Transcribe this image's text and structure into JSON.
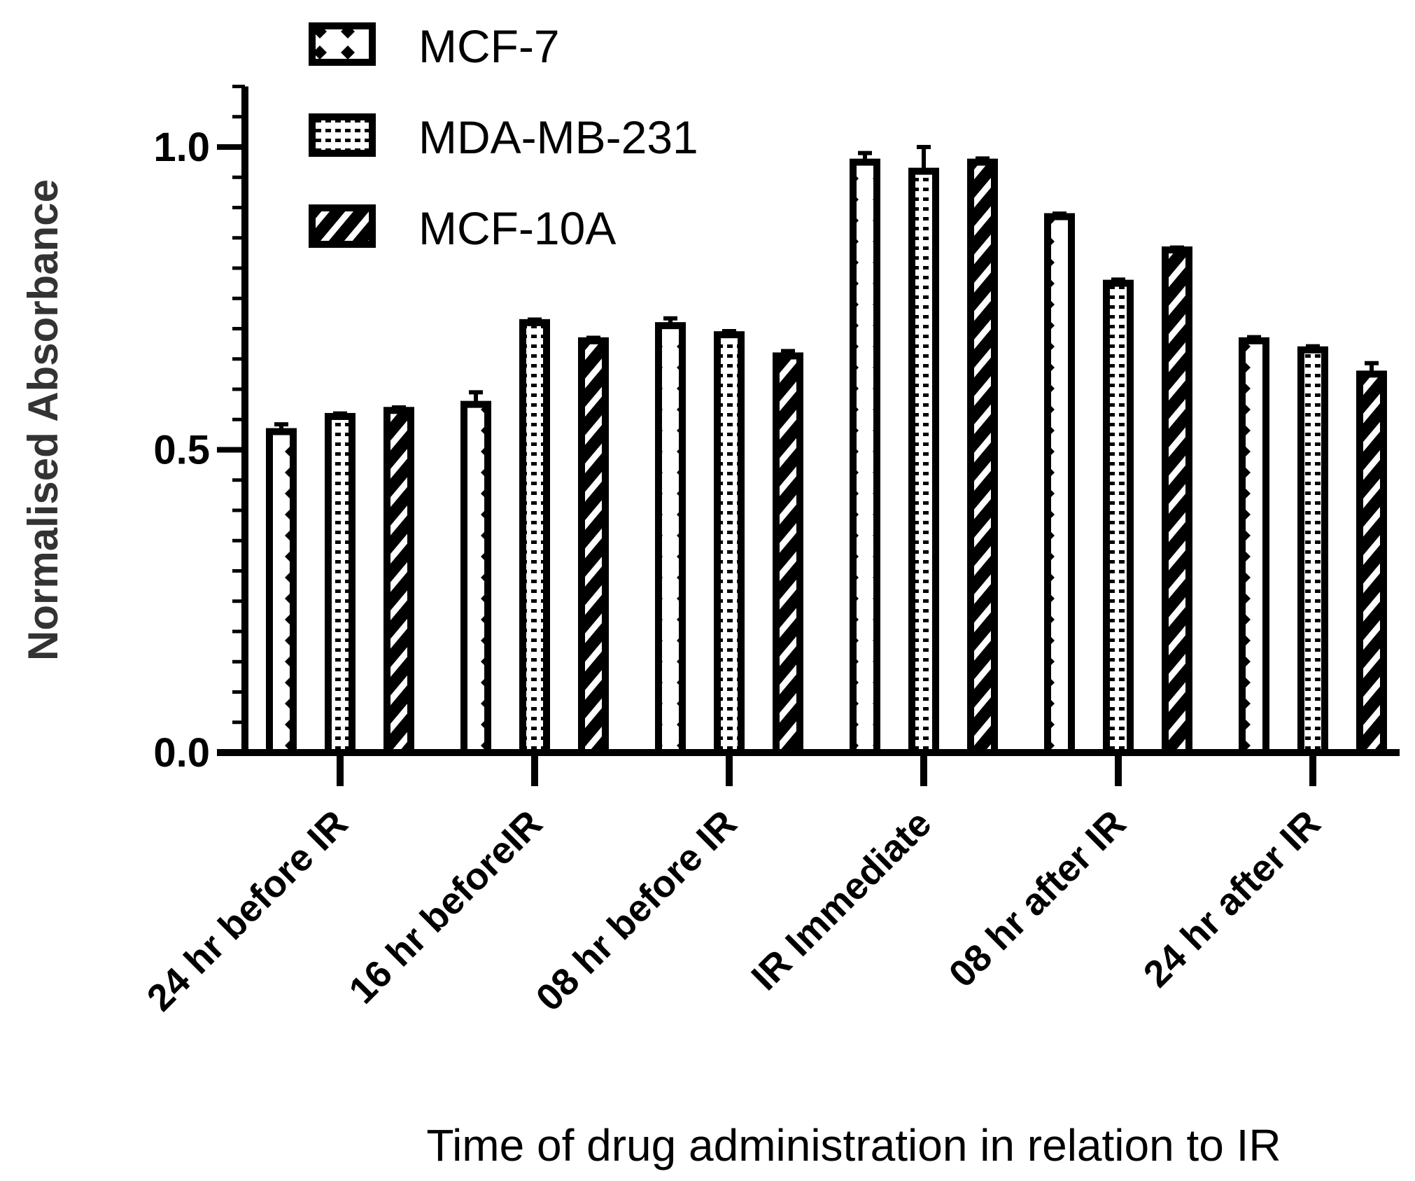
{
  "chart_data": {
    "type": "bar",
    "title": "",
    "xlabel": "Time of drug administration in relation to IR",
    "ylabel": "Normalised Absorbance",
    "ylim": [
      0,
      1.1
    ],
    "yticks": [
      {
        "value": 0.0,
        "label": "0.0"
      },
      {
        "value": 0.5,
        "label": "0.5"
      },
      {
        "value": 1.0,
        "label": "1.0"
      }
    ],
    "minor_tick_step": 0.05,
    "grid": false,
    "legend_position": "top-left",
    "categories": [
      "24 hr before IR",
      "16 hr beforeIR",
      "08 hr before IR",
      "IR Immediate",
      "08 hr after IR",
      "24 hr after IR"
    ],
    "series": [
      {
        "name": "MCF-7",
        "pattern": "diamond",
        "values": [
          0.53,
          0.575,
          0.705,
          0.975,
          0.885,
          0.68
        ],
        "errors": [
          0.012,
          0.02,
          0.012,
          0.015,
          0.005,
          0.006
        ]
      },
      {
        "name": "MDA-MB-231",
        "pattern": "checker",
        "values": [
          0.555,
          0.71,
          0.69,
          0.96,
          0.775,
          0.665
        ],
        "errors": [
          0.005,
          0.005,
          0.006,
          0.04,
          0.006,
          0.006
        ]
      },
      {
        "name": "MCF-10A",
        "pattern": "hatch",
        "values": [
          0.565,
          0.68,
          0.655,
          0.975,
          0.83,
          0.625
        ],
        "errors": [
          0.005,
          0.005,
          0.008,
          0.006,
          0.004,
          0.018
        ]
      }
    ],
    "colors": {
      "ink": "#000000",
      "background": "#ffffff",
      "axis_title": "#333333"
    }
  }
}
